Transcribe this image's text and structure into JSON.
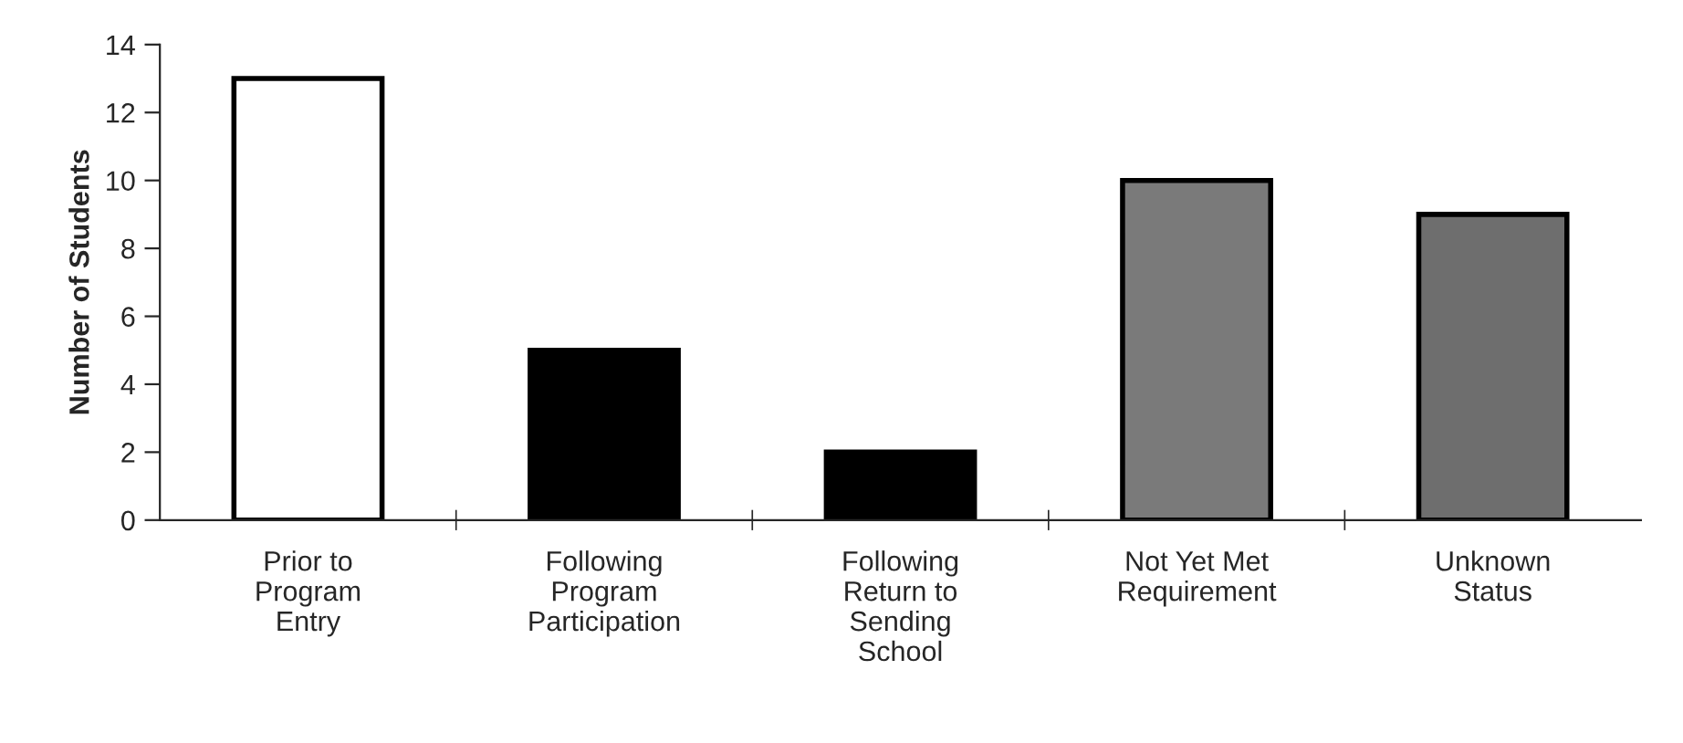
{
  "chart_data": {
    "type": "bar",
    "ylabel": "Number of Students",
    "categories": [
      "Prior to\nProgram\nEntry",
      "Following\nProgram\nParticipation",
      "Following\nReturn to\nSending\nSchool",
      "Not Yet Met\nRequirement",
      "Unknown\nStatus"
    ],
    "values": [
      13,
      5,
      2,
      10,
      9
    ],
    "colors": [
      "#ffffff",
      "#000000",
      "#000000",
      "#7a7a7a",
      "#6e6e6e"
    ],
    "ylim": [
      0,
      14
    ],
    "yticks": [
      0,
      2,
      4,
      6,
      8,
      10,
      12,
      14
    ],
    "grid": false,
    "legend": false
  }
}
